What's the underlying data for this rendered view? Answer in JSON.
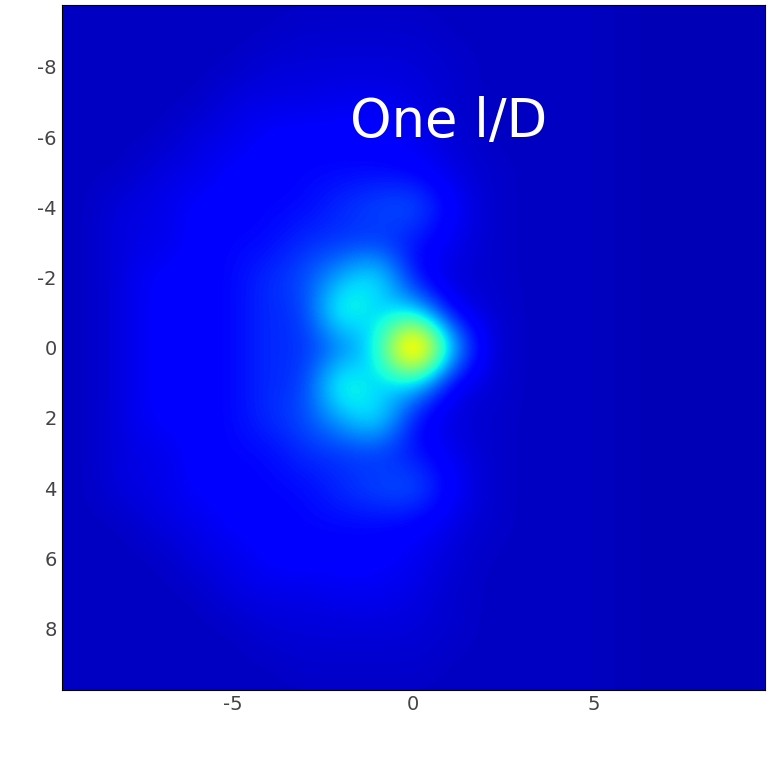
{
  "chart_data": {
    "type": "heatmap",
    "annotations": [
      "One l/D"
    ],
    "x": [
      -10,
      -9,
      -8,
      -7,
      -6,
      -5,
      -4,
      -3,
      -2,
      -1,
      0,
      1,
      2,
      3,
      4,
      5,
      6,
      7,
      8,
      9,
      10
    ],
    "y": [
      -10,
      -9,
      -8,
      -7,
      -6,
      -5,
      -4,
      -3,
      -2,
      -1,
      0,
      1,
      2,
      3,
      4,
      5,
      6,
      7,
      8,
      9,
      10
    ],
    "cells": [
      [
        0.06,
        0.06,
        0.06,
        0.06,
        0.06,
        0.06,
        0.06,
        0.06,
        0.06,
        0.06,
        0.06,
        0.06,
        0.06,
        0.06,
        0.06,
        0.06,
        0.05,
        0.05,
        0.05,
        0.05,
        0.05
      ],
      [
        0.06,
        0.06,
        0.06,
        0.06,
        0.06,
        0.06,
        0.06,
        0.07,
        0.07,
        0.07,
        0.07,
        0.06,
        0.06,
        0.06,
        0.06,
        0.06,
        0.05,
        0.05,
        0.05,
        0.05,
        0.05
      ],
      [
        0.06,
        0.06,
        0.06,
        0.06,
        0.06,
        0.06,
        0.08,
        0.08,
        0.08,
        0.08,
        0.08,
        0.07,
        0.06,
        0.06,
        0.06,
        0.06,
        0.05,
        0.05,
        0.05,
        0.05,
        0.05
      ],
      [
        0.06,
        0.06,
        0.06,
        0.06,
        0.06,
        0.09,
        0.09,
        0.09,
        0.1,
        0.1,
        0.09,
        0.07,
        0.06,
        0.06,
        0.06,
        0.06,
        0.05,
        0.05,
        0.05,
        0.05,
        0.05
      ],
      [
        0.06,
        0.06,
        0.06,
        0.06,
        0.09,
        0.09,
        0.12,
        0.12,
        0.12,
        0.12,
        0.1,
        0.08,
        0.06,
        0.06,
        0.06,
        0.06,
        0.05,
        0.05,
        0.05,
        0.05,
        0.05
      ],
      [
        0.06,
        0.06,
        0.06,
        0.09,
        0.09,
        0.12,
        0.12,
        0.13,
        0.13,
        0.13,
        0.12,
        0.09,
        0.07,
        0.06,
        0.06,
        0.06,
        0.05,
        0.05,
        0.05,
        0.05,
        0.05
      ],
      [
        0.06,
        0.06,
        0.09,
        0.09,
        0.12,
        0.12,
        0.13,
        0.13,
        0.17,
        0.2,
        0.22,
        0.12,
        0.07,
        0.06,
        0.06,
        0.06,
        0.05,
        0.05,
        0.05,
        0.05,
        0.05
      ],
      [
        0.06,
        0.06,
        0.09,
        0.09,
        0.12,
        0.13,
        0.13,
        0.17,
        0.17,
        0.17,
        0.14,
        0.1,
        0.07,
        0.06,
        0.06,
        0.06,
        0.05,
        0.05,
        0.05,
        0.05,
        0.05
      ],
      [
        0.06,
        0.06,
        0.09,
        0.12,
        0.12,
        0.13,
        0.17,
        0.2,
        0.3,
        0.4,
        0.12,
        0.08,
        0.07,
        0.06,
        0.06,
        0.06,
        0.05,
        0.05,
        0.05,
        0.05,
        0.05
      ],
      [
        0.06,
        0.06,
        0.09,
        0.12,
        0.12,
        0.13,
        0.17,
        0.17,
        0.45,
        0.3,
        0.35,
        0.1,
        0.08,
        0.06,
        0.06,
        0.06,
        0.05,
        0.05,
        0.05,
        0.05,
        0.05
      ],
      [
        0.06,
        0.06,
        0.09,
        0.12,
        0.12,
        0.13,
        0.17,
        0.17,
        0.22,
        0.35,
        1.0,
        0.35,
        0.08,
        0.06,
        0.06,
        0.06,
        0.05,
        0.05,
        0.05,
        0.05,
        0.05
      ],
      [
        0.06,
        0.06,
        0.09,
        0.12,
        0.12,
        0.13,
        0.17,
        0.17,
        0.45,
        0.3,
        0.35,
        0.1,
        0.08,
        0.06,
        0.06,
        0.06,
        0.05,
        0.05,
        0.05,
        0.05,
        0.05
      ],
      [
        0.06,
        0.06,
        0.09,
        0.12,
        0.12,
        0.13,
        0.17,
        0.2,
        0.3,
        0.4,
        0.12,
        0.08,
        0.07,
        0.06,
        0.06,
        0.06,
        0.05,
        0.05,
        0.05,
        0.05,
        0.05
      ],
      [
        0.06,
        0.06,
        0.09,
        0.09,
        0.12,
        0.13,
        0.13,
        0.17,
        0.17,
        0.17,
        0.14,
        0.1,
        0.07,
        0.06,
        0.06,
        0.06,
        0.05,
        0.05,
        0.05,
        0.05,
        0.05
      ],
      [
        0.06,
        0.06,
        0.09,
        0.09,
        0.12,
        0.12,
        0.13,
        0.13,
        0.17,
        0.2,
        0.22,
        0.12,
        0.07,
        0.06,
        0.06,
        0.06,
        0.05,
        0.05,
        0.05,
        0.05,
        0.05
      ],
      [
        0.06,
        0.06,
        0.06,
        0.09,
        0.09,
        0.12,
        0.12,
        0.13,
        0.13,
        0.13,
        0.12,
        0.09,
        0.07,
        0.06,
        0.06,
        0.06,
        0.05,
        0.05,
        0.05,
        0.05,
        0.05
      ],
      [
        0.06,
        0.06,
        0.06,
        0.06,
        0.09,
        0.09,
        0.12,
        0.12,
        0.12,
        0.12,
        0.1,
        0.08,
        0.06,
        0.06,
        0.06,
        0.06,
        0.05,
        0.05,
        0.05,
        0.05,
        0.05
      ],
      [
        0.06,
        0.06,
        0.06,
        0.06,
        0.06,
        0.09,
        0.09,
        0.09,
        0.1,
        0.1,
        0.09,
        0.07,
        0.06,
        0.06,
        0.06,
        0.06,
        0.05,
        0.05,
        0.05,
        0.05,
        0.05
      ],
      [
        0.06,
        0.06,
        0.06,
        0.06,
        0.06,
        0.06,
        0.08,
        0.08,
        0.08,
        0.08,
        0.08,
        0.07,
        0.06,
        0.06,
        0.06,
        0.06,
        0.05,
        0.05,
        0.05,
        0.05,
        0.05
      ],
      [
        0.06,
        0.06,
        0.06,
        0.06,
        0.06,
        0.06,
        0.06,
        0.07,
        0.07,
        0.07,
        0.07,
        0.06,
        0.06,
        0.06,
        0.06,
        0.06,
        0.05,
        0.05,
        0.05,
        0.05,
        0.05
      ],
      [
        0.06,
        0.06,
        0.06,
        0.06,
        0.06,
        0.06,
        0.06,
        0.06,
        0.06,
        0.06,
        0.06,
        0.06,
        0.06,
        0.06,
        0.06,
        0.06,
        0.05,
        0.05,
        0.05,
        0.05,
        0.05
      ]
    ],
    "color_range": [
      0,
      1
    ],
    "xlim": [
      -9.75,
      9.75
    ],
    "ylim": [
      9.75,
      -9.75
    ],
    "xticks": [
      -5,
      0,
      5
    ],
    "yticks": [
      -8,
      -6,
      -4,
      -2,
      0,
      2,
      4,
      6,
      8
    ]
  }
}
